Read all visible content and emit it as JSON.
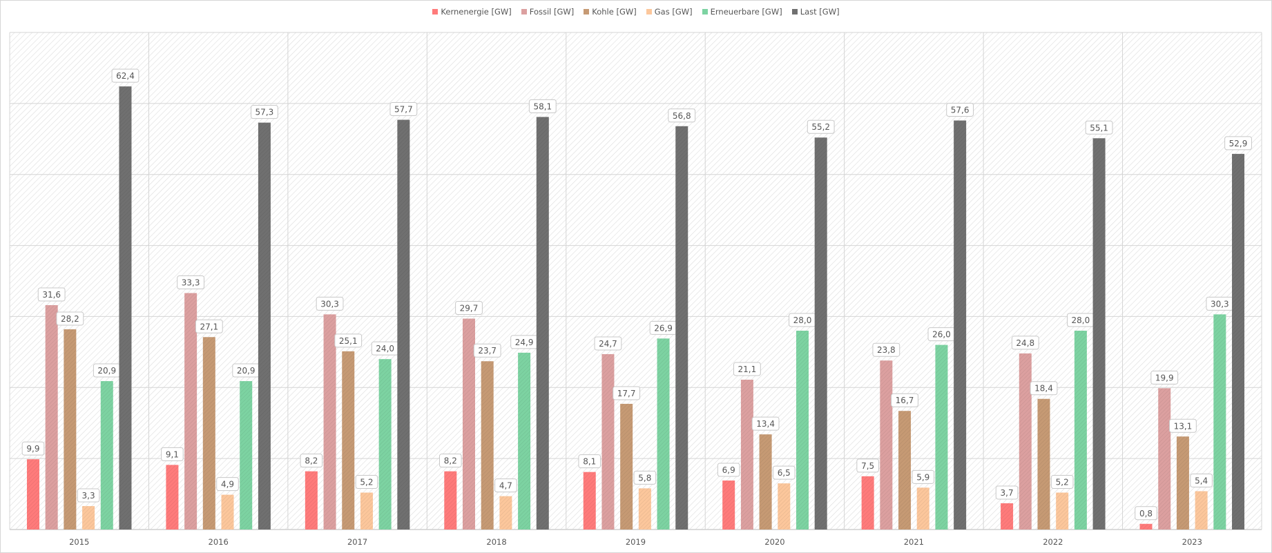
{
  "chart_data": {
    "type": "bar",
    "categories": [
      "2015",
      "2016",
      "2017",
      "2018",
      "2019",
      "2020",
      "2021",
      "2022",
      "2023"
    ],
    "series": [
      {
        "name": "Kernenergie [GW]",
        "color": "#ff7b7b",
        "values": [
          9.9,
          9.1,
          8.2,
          8.2,
          8.1,
          6.9,
          7.5,
          3.7,
          0.8
        ]
      },
      {
        "name": "Fossil [GW]",
        "color": "#dca0a0",
        "values": [
          31.6,
          33.3,
          30.3,
          29.7,
          24.7,
          21.1,
          23.8,
          24.8,
          19.9
        ]
      },
      {
        "name": "Kohle [GW]",
        "color": "#c69a74",
        "values": [
          28.2,
          27.1,
          25.1,
          23.7,
          17.7,
          13.4,
          16.7,
          18.4,
          13.1
        ]
      },
      {
        "name": "Gas [GW]",
        "color": "#fcc79c",
        "values": [
          3.3,
          4.9,
          5.2,
          4.7,
          5.8,
          6.5,
          5.9,
          5.2,
          5.4
        ]
      },
      {
        "name": "Erneuerbare [GW]",
        "color": "#7dd3a2",
        "values": [
          20.9,
          20.9,
          24.0,
          24.9,
          26.9,
          28.0,
          26.0,
          28.0,
          30.3
        ]
      },
      {
        "name": "Last [GW]",
        "color": "#707070",
        "values": [
          62.4,
          57.3,
          57.7,
          58.1,
          56.8,
          55.2,
          57.6,
          55.1,
          52.9
        ]
      }
    ],
    "title": "",
    "xlabel": "",
    "ylabel": "",
    "ylim": [
      0,
      70
    ],
    "y_grid_step": 10,
    "y_tick_labels_shown": false,
    "grid": true,
    "legend_position": "top-center",
    "decimal_separator": ","
  }
}
